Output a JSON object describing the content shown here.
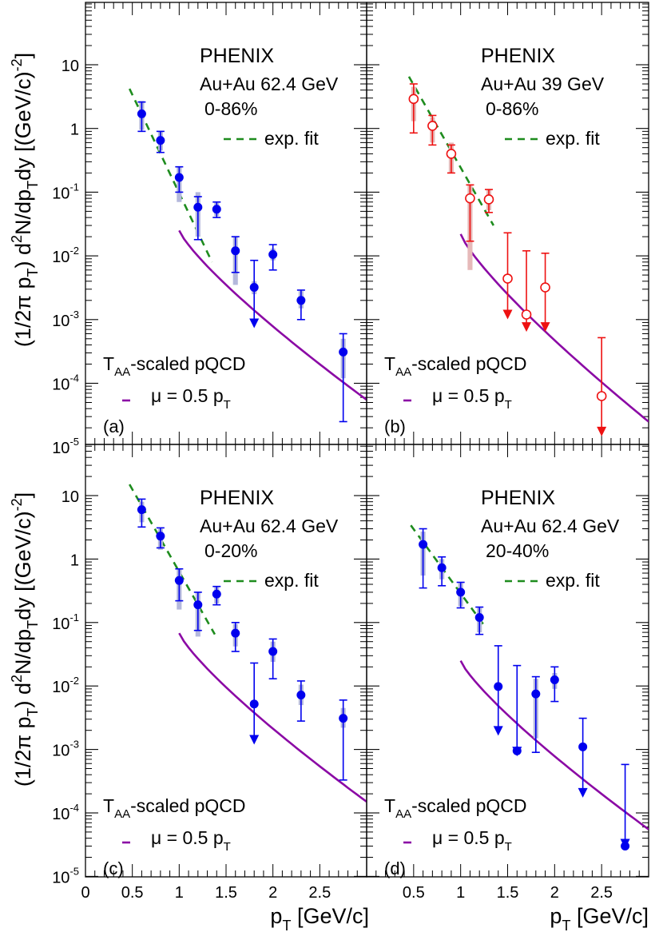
{
  "figure": {
    "y_axis_label": {
      "pre": "(1/2π p",
      "sub1": "T",
      "mid1": ") d",
      "sup1": "2",
      "mid2": "N/dp",
      "sub2": "T",
      "mid3": "dy [(GeV/c)",
      "sup2": "-2",
      "post": "]"
    },
    "x_axis_label": {
      "pre": "p",
      "sub": "T",
      "post": " [GeV/c]"
    }
  },
  "chart_data": [
    {
      "type": "scatter",
      "panel": "(a)",
      "experiment": "PHENIX",
      "system": "Au+Au 62.4 GeV",
      "centrality": "0-86%",
      "fit_label": "exp. fit",
      "pqcd_label": {
        "pre": "T",
        "sub": "AA",
        "post": "-scaled pQCD"
      },
      "mu_label": {
        "pre": "μ = 0.5 p",
        "sub": "T"
      },
      "marker": "filled-circle",
      "color": "#0000ee",
      "box_color": "#b4b8dc",
      "xlim": [
        0,
        3.0
      ],
      "ylim": [
        1e-05,
        50
      ],
      "x_ticks": [],
      "y_ticks": [
        "10",
        "1",
        "10^-1",
        "10^-2",
        "10^-3",
        "10^-4",
        "10^-5"
      ],
      "points": [
        {
          "x": 0.6,
          "y": 1.7,
          "lo": 0.9,
          "hi": 2.6,
          "slo": 0.95,
          "shi": 2.7
        },
        {
          "x": 0.8,
          "y": 0.65,
          "lo": 0.42,
          "hi": 0.9,
          "slo": 0.45,
          "shi": 0.9
        },
        {
          "x": 1.0,
          "y": 0.17,
          "lo": 0.1,
          "hi": 0.25,
          "slo": 0.07,
          "shi": 0.25
        },
        {
          "x": 1.2,
          "y": 0.058,
          "lo": 0.018,
          "hi": 0.085,
          "slo": 0.02,
          "shi": 0.1
        },
        {
          "x": 1.4,
          "y": 0.054,
          "lo": 0.04,
          "hi": 0.07,
          "slo": 0.042,
          "shi": 0.068
        },
        {
          "x": 1.6,
          "y": 0.012,
          "lo": 0.0055,
          "hi": 0.02,
          "slo": 0.0035,
          "shi": 0.02
        },
        {
          "x": 1.8,
          "y": 0.0032,
          "hi": 0.0085,
          "arrow_to": 0.0008,
          "slo": 0.0025,
          "shi": 0.004
        },
        {
          "x": 2.0,
          "y": 0.0105,
          "lo": 0.006,
          "hi": 0.015,
          "slo": 0.0085,
          "shi": 0.013
        },
        {
          "x": 2.3,
          "y": 0.002,
          "lo": 0.001,
          "hi": 0.0029,
          "slo": 0.0015,
          "shi": 0.0028
        },
        {
          "x": 2.75,
          "y": 0.00031,
          "lo": 2.5e-05,
          "hi": 0.0006,
          "slo": 0.00012,
          "shi": 0.0005
        }
      ],
      "fit": {
        "x0": 0.47,
        "y0": 4.2,
        "x1": 1.35,
        "y1": 0.008
      },
      "pqcd": {
        "y_at_1": 0.025,
        "y_at_3": 5.5e-05
      }
    },
    {
      "type": "scatter",
      "panel": "(b)",
      "experiment": "PHENIX",
      "system": "Au+Au 39 GeV",
      "centrality": "0-86%",
      "fit_label": "exp. fit",
      "pqcd_label": {
        "pre": "T",
        "sub": "AA",
        "post": "-scaled pQCD"
      },
      "mu_label": {
        "pre": "μ = 0.5 p",
        "sub": "T"
      },
      "marker": "open-circle",
      "color": "#ee1111",
      "box_color": "#e6b9b9",
      "xlim": [
        0,
        3.0
      ],
      "ylim": [
        1e-05,
        50
      ],
      "x_ticks": [],
      "y_ticks": [],
      "points": [
        {
          "x": 0.5,
          "y": 2.9,
          "lo": 0.85,
          "hi": 5.0,
          "slo": 1.3,
          "shi": 4.5
        },
        {
          "x": 0.7,
          "y": 1.1,
          "lo": 0.55,
          "hi": 1.6,
          "slo": 0.6,
          "shi": 1.5
        },
        {
          "x": 0.9,
          "y": 0.4,
          "lo": 0.2,
          "hi": 0.55,
          "slo": 0.2,
          "shi": 0.6
        },
        {
          "x": 1.1,
          "y": 0.08,
          "lo": 0.017,
          "hi": 0.13,
          "slo": 0.006,
          "shi": 0.13
        },
        {
          "x": 1.3,
          "y": 0.077,
          "lo": 0.048,
          "hi": 0.11,
          "slo": 0.052,
          "shi": 0.11
        },
        {
          "x": 1.5,
          "y": 0.0044,
          "hi": 0.023,
          "arrow_to": 0.0011
        },
        {
          "x": 1.7,
          "y": 0.0012,
          "hi": 0.012,
          "arrow_to": 0.0007
        },
        {
          "x": 1.9,
          "y": 0.0032,
          "hi": 0.011,
          "arrow_to": 0.0007
        },
        {
          "x": 2.5,
          "y": 6.3e-05,
          "hi": 0.00052,
          "arrow_to": 1.6e-05
        }
      ],
      "fit": {
        "x0": 0.45,
        "y0": 6.5,
        "x1": 1.35,
        "y1": 0.03
      },
      "pqcd": {
        "y_at_1": 0.022,
        "y_at_3": 2.5e-05
      }
    },
    {
      "type": "scatter",
      "panel": "(c)",
      "experiment": "PHENIX",
      "system": "Au+Au 62.4 GeV",
      "centrality": "0-20%",
      "fit_label": "exp. fit",
      "pqcd_label": {
        "pre": "T",
        "sub": "AA",
        "post": "-scaled pQCD"
      },
      "mu_label": {
        "pre": "μ = 0.5 p",
        "sub": "T"
      },
      "marker": "filled-circle",
      "color": "#0000ee",
      "box_color": "#b4b8dc",
      "xlim": [
        0,
        3.0
      ],
      "ylim": [
        1e-05,
        50
      ],
      "x_ticks": [
        "0",
        "0.5",
        "1",
        "1.5",
        "2",
        "2.5"
      ],
      "y_ticks": [
        "10",
        "1",
        "10^-1",
        "10^-2",
        "10^-3",
        "10^-4",
        "10^-5"
      ],
      "points": [
        {
          "x": 0.6,
          "y": 6.0,
          "lo": 3.2,
          "hi": 8.8,
          "slo": 3.8,
          "shi": 8.0
        },
        {
          "x": 0.8,
          "y": 2.3,
          "lo": 1.5,
          "hi": 3.1,
          "slo": 1.4,
          "shi": 3.0
        },
        {
          "x": 1.0,
          "y": 0.46,
          "lo": 0.22,
          "hi": 0.7,
          "slo": 0.16,
          "shi": 0.7
        },
        {
          "x": 1.2,
          "y": 0.19,
          "lo": 0.075,
          "hi": 0.3,
          "slo": 0.06,
          "shi": 0.3
        },
        {
          "x": 1.4,
          "y": 0.28,
          "lo": 0.19,
          "hi": 0.37,
          "slo": 0.2,
          "shi": 0.36
        },
        {
          "x": 1.6,
          "y": 0.068,
          "lo": 0.035,
          "hi": 0.1,
          "slo": 0.042,
          "shi": 0.095
        },
        {
          "x": 1.8,
          "y": 0.0052,
          "hi": 0.023,
          "arrow_to": 0.0013
        },
        {
          "x": 2.0,
          "y": 0.035,
          "lo": 0.013,
          "hi": 0.055,
          "slo": 0.024,
          "shi": 0.05
        },
        {
          "x": 2.3,
          "y": 0.0072,
          "lo": 0.0028,
          "hi": 0.012,
          "slo": 0.005,
          "shi": 0.0105
        },
        {
          "x": 2.75,
          "y": 0.0031,
          "lo": 0.00033,
          "hi": 0.006,
          "slo": 0.0022,
          "shi": 0.0045
        }
      ],
      "fit": {
        "x0": 0.47,
        "y0": 15,
        "x1": 1.38,
        "y1": 0.065
      },
      "pqcd": {
        "y_at_1": 0.068,
        "y_at_3": 0.00015
      }
    },
    {
      "type": "scatter",
      "panel": "(d)",
      "experiment": "PHENIX",
      "system": "Au+Au 62.4 GeV",
      "centrality": "20-40%",
      "fit_label": "exp. fit",
      "pqcd_label": {
        "pre": "T",
        "sub": "AA",
        "post": "-scaled pQCD"
      },
      "mu_label": {
        "pre": "μ = 0.5 p",
        "sub": "T"
      },
      "marker": "filled-circle",
      "color": "#0000ee",
      "box_color": "#b4b8dc",
      "xlim": [
        0,
        3.0
      ],
      "ylim": [
        1e-05,
        50
      ],
      "x_ticks": [
        "0.5",
        "1",
        "1.5",
        "2",
        "2.5"
      ],
      "y_ticks": [],
      "points": [
        {
          "x": 0.6,
          "y": 1.7,
          "lo": 0.35,
          "hi": 3.0,
          "slo": 0.55,
          "shi": 2.7
        },
        {
          "x": 0.8,
          "y": 0.73,
          "lo": 0.38,
          "hi": 1.08,
          "slo": 0.48,
          "shi": 1.0
        },
        {
          "x": 1.0,
          "y": 0.3,
          "lo": 0.17,
          "hi": 0.43,
          "slo": 0.18,
          "shi": 0.42
        },
        {
          "x": 1.2,
          "y": 0.12,
          "lo": 0.065,
          "hi": 0.175,
          "slo": 0.07,
          "shi": 0.17
        },
        {
          "x": 1.4,
          "y": 0.0098,
          "hi": 0.043,
          "arrow_to": 0.0018
        },
        {
          "x": 1.6,
          "y": 0.00095,
          "hi": 0.021,
          "arrow_to": 0.00085
        },
        {
          "x": 1.8,
          "y": 0.0075,
          "lo": 0.0009,
          "hi": 0.014,
          "slo": 0.0015,
          "shi": 0.013
        },
        {
          "x": 2.0,
          "y": 0.0125,
          "lo": 0.0057,
          "hi": 0.02,
          "slo": 0.009,
          "shi": 0.016
        },
        {
          "x": 2.3,
          "y": 0.0011,
          "hi": 0.0031,
          "arrow_to": 0.00019
        },
        {
          "x": 2.75,
          "y": 3e-05,
          "hi": 0.00058,
          "arrow_to": 3e-05
        }
      ],
      "fit": {
        "x0": 0.47,
        "y0": 3.4,
        "x1": 1.25,
        "y1": 0.09
      },
      "pqcd": {
        "y_at_1": 0.025,
        "y_at_3": 5.5e-05
      }
    }
  ]
}
